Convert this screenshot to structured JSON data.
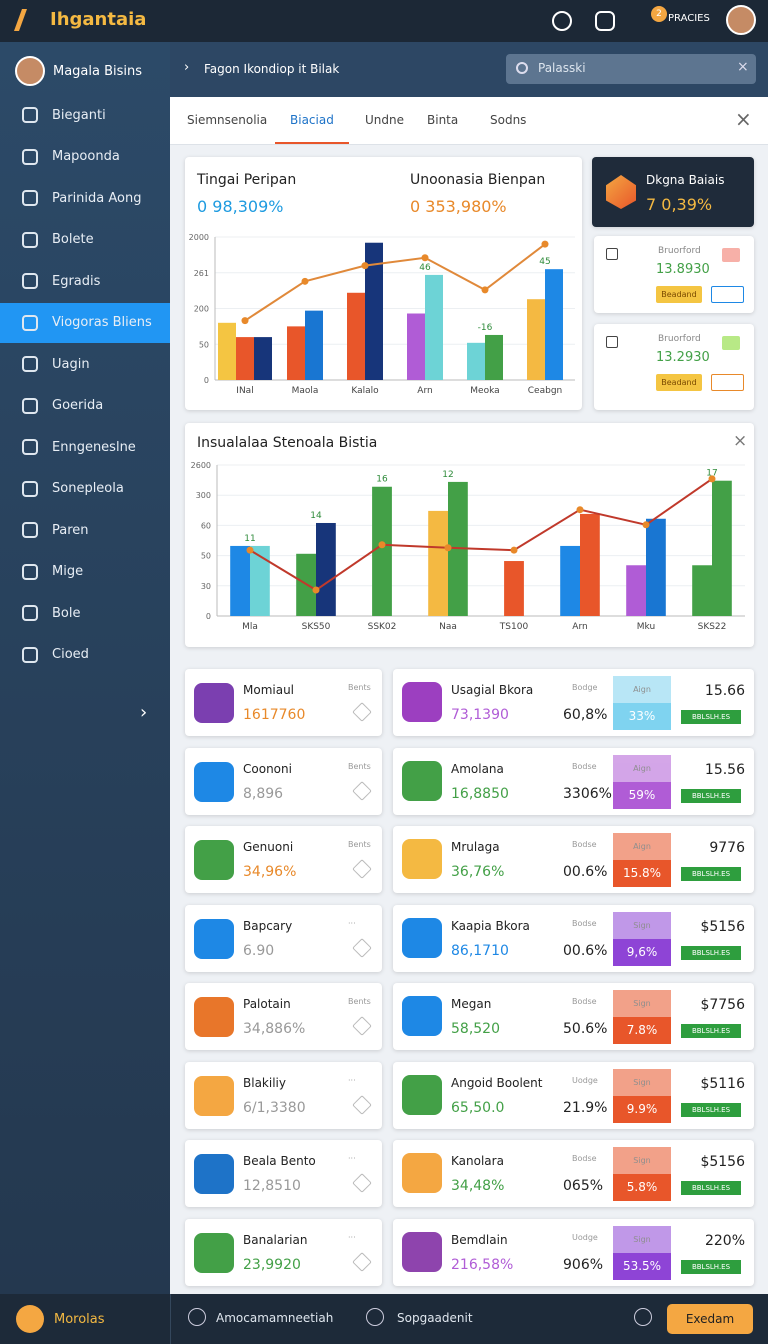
{
  "header": {
    "app": "Ihgantaia",
    "badge": "2",
    "user": "PRACIES"
  },
  "sidebar": {
    "user": "Magala Bisins",
    "items": [
      "Bieganti",
      "Mapoonda",
      "Parinida Aong",
      "Bolete",
      "Egradis",
      "Viogoras Bliens",
      "Uagin",
      "Goerida",
      "Enngeneslne",
      "Sonepleola",
      "Paren",
      "Mige",
      "Bole",
      "Cioed"
    ],
    "active": "Viogoras Bliens"
  },
  "topbar": {
    "breadcrumb": "Fagon Ikondiop it Bilak",
    "search": "Palasski"
  },
  "tabs": {
    "items": [
      "Siemnsenolia",
      "Biaciad",
      "Undne",
      "Binta",
      "Sodns"
    ],
    "active": "Biaciad"
  },
  "summary": {
    "left_label": "Tingai Peripan",
    "left_value": "0 98,309%",
    "right_label": "Unoonasia Bienpan",
    "right_value": "0 353,980%"
  },
  "side_cards": {
    "dark_title": "Dkgna Baiais",
    "dark_value": "7 0,39%",
    "cards": [
      {
        "title": "Bruorford",
        "value": "13.8930",
        "button": "Beadand"
      },
      {
        "title": "Bruorford",
        "value": "13.2930",
        "button": "Beadand"
      }
    ]
  },
  "chart_data": [
    {
      "type": "bar",
      "categories": [
        "INal",
        "Maola",
        "Kalalo",
        "Arn",
        "Meoka",
        "Ceabgn"
      ],
      "series": [
        {
          "values": [
            80,
            75,
            122,
            93,
            52,
            113
          ],
          "colors": [
            "#f4c542",
            "#e8562a",
            "#e8562a",
            "#b05cd6",
            "#6dd3d6",
            "#f4b942"
          ]
        },
        {
          "values": [
            60,
            97,
            192,
            147,
            63,
            155
          ],
          "colors": [
            "#e8562a",
            "#1976d2",
            "#17357a",
            "#6dd3d6",
            "#43a047",
            "#1e88e5"
          ]
        },
        {
          "values": [
            60,
            null,
            null,
            null,
            null,
            null
          ],
          "colors": [
            "#17357a",
            null,
            null,
            null,
            null,
            null
          ]
        },
        {
          "type": "line",
          "color": "#e0893a",
          "values": [
            83,
            138,
            160,
            171,
            126,
            190
          ]
        }
      ],
      "ylim": [
        0,
        200
      ],
      "yticks": [
        0,
        50,
        {
          "value": 100,
          "label": "200"
        },
        {
          "value": 150,
          "label": "261"
        },
        {
          "value": 200,
          "label": "2000"
        }
      ],
      "grid": true,
      "annotations": [
        {
          "text": "46",
          "category": "Arn"
        },
        {
          "text": "-16",
          "category": "Meoka"
        },
        {
          "text": "45",
          "category": "Ceabgn"
        }
      ]
    },
    {
      "type": "bar",
      "title": "Insualalaa Stenoala Bistia",
      "categories": [
        "Mla",
        "SKS50",
        "SSK02",
        "Naa",
        "TS100",
        "Arn",
        "Mku",
        "SKS22"
      ],
      "series": [
        {
          "values": [
            116,
            103,
            214,
            174,
            91,
            116,
            84,
            84
          ],
          "colors": [
            "#1e88e5",
            "#43a047",
            "#43a047",
            "#f4b942",
            "#e8562a",
            "#1e88e5",
            "#b05cd6",
            "#43a047"
          ]
        },
        {
          "values": [
            116,
            154,
            null,
            222,
            null,
            169,
            161,
            224
          ],
          "colors": [
            "#6dd3d6",
            "#17357a",
            null,
            "#43a047",
            null,
            "#e8562a",
            "#1976d2",
            "#43a047"
          ]
        },
        {
          "type": "line",
          "color": "#c0392b",
          "values": [
            109,
            43,
            118,
            113,
            109,
            176,
            151,
            227
          ]
        }
      ],
      "ylim": [
        0,
        250
      ],
      "yticks": [
        0,
        {
          "value": 50,
          "label": "30"
        },
        {
          "value": 100,
          "label": "50"
        },
        {
          "value": 150,
          "label": "60"
        },
        {
          "value": 200,
          "label": "300"
        },
        {
          "value": 250,
          "label": "2600"
        }
      ],
      "grid": true,
      "annotations": [
        {
          "text": "11",
          "category": "Mla"
        },
        {
          "text": "14",
          "category": "SKS50"
        },
        {
          "text": "16",
          "category": "SSK02"
        },
        {
          "text": "12",
          "category": "Naa"
        },
        {
          "text": "17",
          "category": "SKS22"
        }
      ]
    }
  ],
  "list_left": [
    {
      "name": "Momiaul",
      "value": "1617760",
      "meta": "Bents",
      "color": "#7b3fb0",
      "value_color": "#e8892a"
    },
    {
      "name": "Coononi",
      "value": "8,896",
      "meta": "Bents",
      "color": "#1e88e5",
      "value_color": "#999"
    },
    {
      "name": "Genuoni",
      "value": "34,96%",
      "meta": "Bents",
      "color": "#43a047",
      "value_color": "#e8892a"
    },
    {
      "name": "Bapcary",
      "value": "6.90",
      "meta": "···",
      "color": "#1e88e5",
      "value_color": "#999"
    },
    {
      "name": "Palotain",
      "value": "34,886%",
      "meta": "Bents",
      "color": "#e8762a",
      "value_color": "#999"
    },
    {
      "name": "Blakiliy",
      "value": "6/1,3380",
      "meta": "···",
      "color": "#f4a742",
      "value_color": "#999"
    },
    {
      "name": "Beala Bento",
      "value": "12,8510",
      "meta": "···",
      "color": "#1e73c8",
      "value_color": "#999"
    },
    {
      "name": "Banalarian",
      "value": "23,9920",
      "meta": "···",
      "color": "#43a047",
      "value_color": "#43a047"
    }
  ],
  "list_right": [
    {
      "name": "Usagial Bkora",
      "value": "73,1390",
      "meta": "Bodge",
      "pct": "60,8%",
      "badge": "Aign",
      "badge_value": "33%",
      "price": "15.66",
      "tag": "BBLSLH.ES",
      "color": "#9c3fc0",
      "value_color": "#b05cd6",
      "badge_color": "#7fd3f0"
    },
    {
      "name": "Amolana",
      "value": "16,8850",
      "meta": "Bodse",
      "pct": "3306%",
      "badge": "Aign",
      "badge_value": "59%",
      "price": "15.56",
      "tag": "BBLSLH.ES",
      "color": "#43a047",
      "value_color": "#43a047",
      "badge_color": "#b05cd6"
    },
    {
      "name": "Mrulaga",
      "value": "36,76%",
      "meta": "Bodse",
      "pct": "00.6%",
      "badge": "Aign",
      "badge_value": "15.8%",
      "price": "9776",
      "tag": "BBLSLH.ES",
      "color": "#f4b942",
      "value_color": "#43a047",
      "badge_color": "#e8562a"
    },
    {
      "name": "Kaapia Bkora",
      "value": "86,1710",
      "meta": "Bodse",
      "pct": "00.6%",
      "badge": "Sign",
      "badge_value": "9,6%",
      "price": "$5156",
      "tag": "BBLSLH.ES",
      "color": "#1e88e5",
      "value_color": "#1e88e5",
      "badge_color": "#8e44d6"
    },
    {
      "name": "Megan",
      "value": "58,520",
      "meta": "Bodse",
      "pct": "50.6%",
      "badge": "Sign",
      "badge_value": "7.8%",
      "price": "$7756",
      "tag": "BBLSLH.ES",
      "color": "#1e88e5",
      "value_color": "#43a047",
      "badge_color": "#e8562a"
    },
    {
      "name": "Angoid Boolent",
      "value": "65,50.0",
      "meta": "Uodge",
      "pct": "21.9%",
      "badge": "Sign",
      "badge_value": "9.9%",
      "price": "$5116",
      "tag": "BBLSLH.ES",
      "color": "#43a047",
      "value_color": "#43a047",
      "badge_color": "#e8562a"
    },
    {
      "name": "Kanolara",
      "value": "34,48%",
      "meta": "Bodse",
      "pct": "065%",
      "badge": "Sign",
      "badge_value": "5.8%",
      "price": "$5156",
      "tag": "BBLSLH.ES",
      "color": "#f4a742",
      "value_color": "#43a047",
      "badge_color": "#e8562a"
    },
    {
      "name": "Bemdlain",
      "value": "216,58%",
      "meta": "Uodge",
      "pct": "906%",
      "badge": "Sign",
      "badge_value": "53.5%",
      "price": "220%",
      "tag": "BBLSLH.ES",
      "color": "#8e44ad",
      "value_color": "#b05cd6",
      "badge_color": "#8e44d6"
    }
  ],
  "footer": {
    "left": "Morolas",
    "item1": "Amocamamneetiah",
    "item2": "Sopgaadenit",
    "button": "Exedam"
  }
}
